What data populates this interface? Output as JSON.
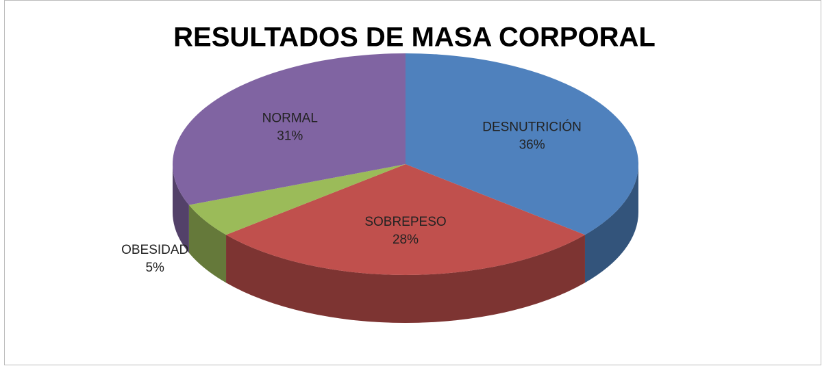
{
  "chart_data": {
    "type": "pie",
    "title": "RESULTADOS DE MASA CORPORAL",
    "categories": [
      "DESNUTRICIÓN",
      "SOBREPESO",
      "OBESIDAD",
      "NORMAL"
    ],
    "values": [
      36,
      28,
      5,
      31
    ],
    "value_labels": [
      "36%",
      "28%",
      "5%",
      "31%"
    ],
    "colors": [
      "#4f81bd",
      "#c0504d",
      "#9bbb59",
      "#8064a2"
    ]
  }
}
